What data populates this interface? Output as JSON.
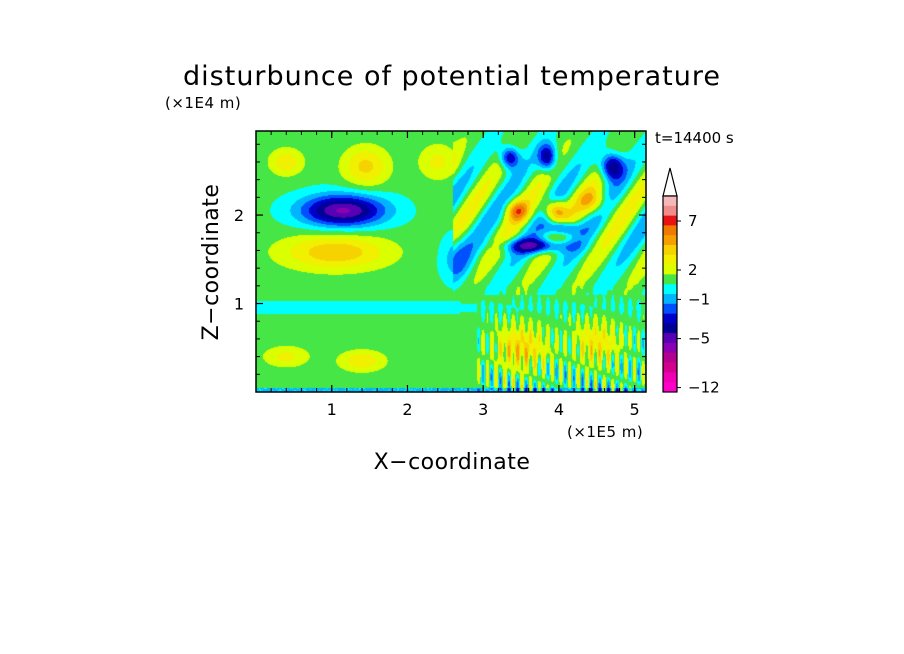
{
  "chart_data": {
    "type": "heatmap",
    "title": "disturbunce of potential temperature",
    "xlabel": "X−coordinate",
    "ylabel": "Z−coordinate",
    "x_unit": "(×1E5 m)",
    "y_unit": "(×1E4 m)",
    "time_label": "t=14400 s",
    "xlim": [
      0,
      5.15
    ],
    "ylim": [
      0,
      2.95
    ],
    "x_ticks": [
      "1",
      "2",
      "3",
      "4",
      "5"
    ],
    "x_tick_values": [
      1,
      2,
      3,
      4,
      5
    ],
    "y_ticks": [
      "1",
      "2"
    ],
    "y_tick_values": [
      1,
      2
    ],
    "colorbar": {
      "tick_labels": [
        "7",
        "2",
        "−1",
        "−5",
        "−12"
      ],
      "tick_values": [
        7,
        2,
        -1,
        -5,
        -12
      ],
      "levels_top_to_bottom": [
        9,
        8,
        7,
        6,
        5,
        4,
        3,
        2,
        1,
        0,
        -1,
        -2,
        -3,
        -4,
        -5,
        -6,
        -7,
        -8,
        -9,
        -12
      ],
      "colors_top_to_bottom": [
        "#f5b8b8",
        "#f08c8c",
        "#e81414",
        "#f07a00",
        "#f5a000",
        "#f5d200",
        "#f0f000",
        "#d9ff00",
        "#46e646",
        "#00ffff",
        "#00b4ff",
        "#0050ff",
        "#0000c8",
        "#000096",
        "#5a00b4",
        "#8c00b4",
        "#b4008c",
        "#d2008c",
        "#f000b4",
        "#ff00c8"
      ],
      "extends_top": true
    },
    "fields": [
      {
        "x": 1.15,
        "z": 2.05,
        "sx": 0.55,
        "sz": 0.18,
        "value": -6.5
      },
      {
        "x": 1.05,
        "z": 1.58,
        "sx": 0.7,
        "sz": 0.2,
        "value": 3.5
      },
      {
        "x": 1.45,
        "z": 2.55,
        "sx": 0.3,
        "sz": 0.22,
        "value": 3
      },
      {
        "x": 0.4,
        "z": 2.6,
        "sx": 0.22,
        "sz": 0.15,
        "value": 2.5
      },
      {
        "x": 2.4,
        "z": 2.6,
        "sx": 0.25,
        "sz": 0.2,
        "value": 2
      },
      {
        "x": 3.35,
        "z": 2.65,
        "sx": 0.12,
        "sz": 0.12,
        "value": -5
      },
      {
        "x": 3.85,
        "z": 2.65,
        "sx": 0.12,
        "sz": 0.15,
        "value": -5
      },
      {
        "x": 4.7,
        "z": 2.55,
        "sx": 0.15,
        "sz": 0.15,
        "value": -6
      },
      {
        "x": 3.7,
        "z": 1.65,
        "sx": 0.4,
        "sz": 0.08,
        "value": -5
      },
      {
        "x": 4.05,
        "z": 1.85,
        "sx": 0.2,
        "sz": 0.08,
        "value": -4.5
      },
      {
        "x": 3.45,
        "z": 2.05,
        "sx": 0.15,
        "sz": 0.12,
        "value": 4
      },
      {
        "x": 3.95,
        "z": 2.05,
        "sx": 0.15,
        "sz": 0.12,
        "value": 5
      },
      {
        "x": 4.45,
        "z": 2.15,
        "sx": 0.2,
        "sz": 0.15,
        "value": 3
      },
      {
        "x": 2.65,
        "z": 1.5,
        "sx": 0.2,
        "sz": 0.25,
        "value": -2
      },
      {
        "x": 1.4,
        "z": 0.35,
        "sx": 0.3,
        "sz": 0.12,
        "value": 2.5
      },
      {
        "x": 0.4,
        "z": 0.4,
        "sx": 0.3,
        "sz": 0.12,
        "value": 2
      },
      {
        "x": 3.5,
        "z": 0.5,
        "sx": 0.35,
        "sz": 0.25,
        "value": 3
      },
      {
        "x": 4.5,
        "z": 0.55,
        "sx": 0.3,
        "sz": 0.25,
        "value": 2.5
      }
    ]
  }
}
